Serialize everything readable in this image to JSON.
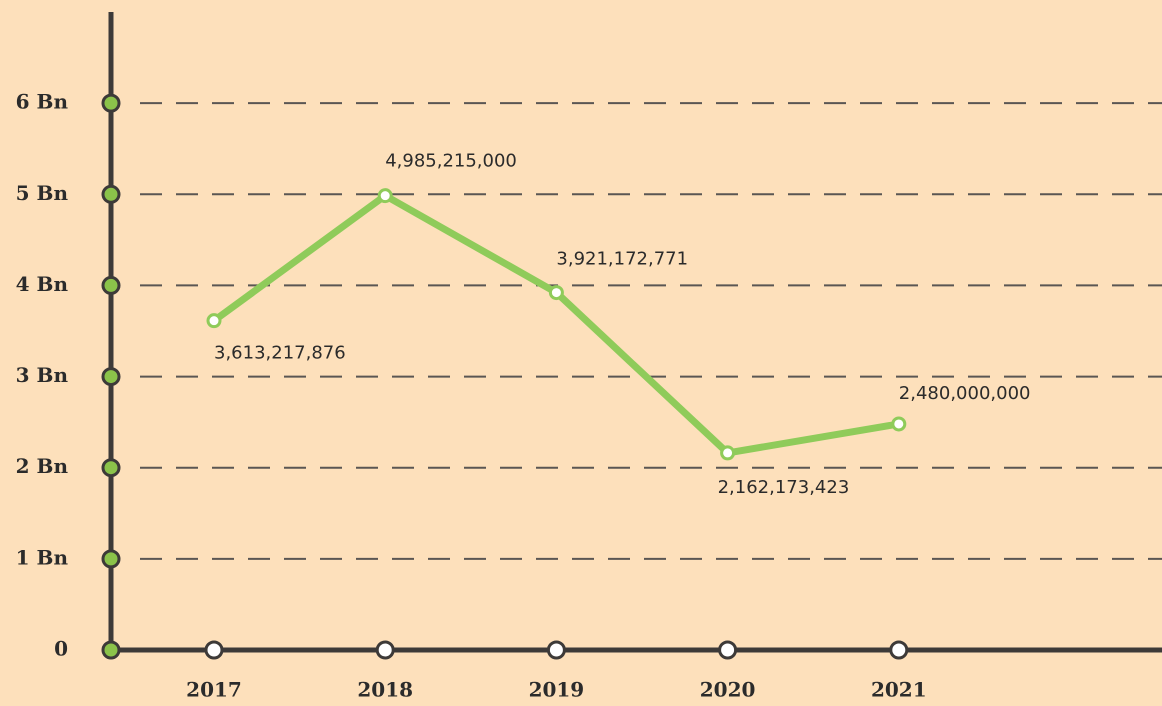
{
  "chart_data": {
    "type": "line",
    "categories": [
      "2017",
      "2018",
      "2019",
      "2020",
      "2021"
    ],
    "series": [
      {
        "color": "#8fcb5a",
        "values": [
          3613217876,
          4985215000,
          3921172771,
          2162173423,
          2480000000
        ],
        "value_labels": [
          "3,613,217,876",
          "4,985,215,000",
          "3,921,172,771",
          "2,162,173,423",
          "2,480,000,000"
        ]
      }
    ],
    "ylim": [
      0,
      7000000000
    ],
    "yticks": [
      0,
      {
        "value": 1000000000,
        "label": "1 Bn"
      },
      {
        "value": 2000000000,
        "label": "2 Bn"
      },
      {
        "value": 3000000000,
        "label": "3 Bn"
      },
      {
        "value": 4000000000,
        "label": "4 Bn"
      },
      {
        "value": 5000000000,
        "label": "5 Bn"
      },
      {
        "value": 6000000000,
        "label": "6 Bn"
      }
    ],
    "grid": true
  }
}
